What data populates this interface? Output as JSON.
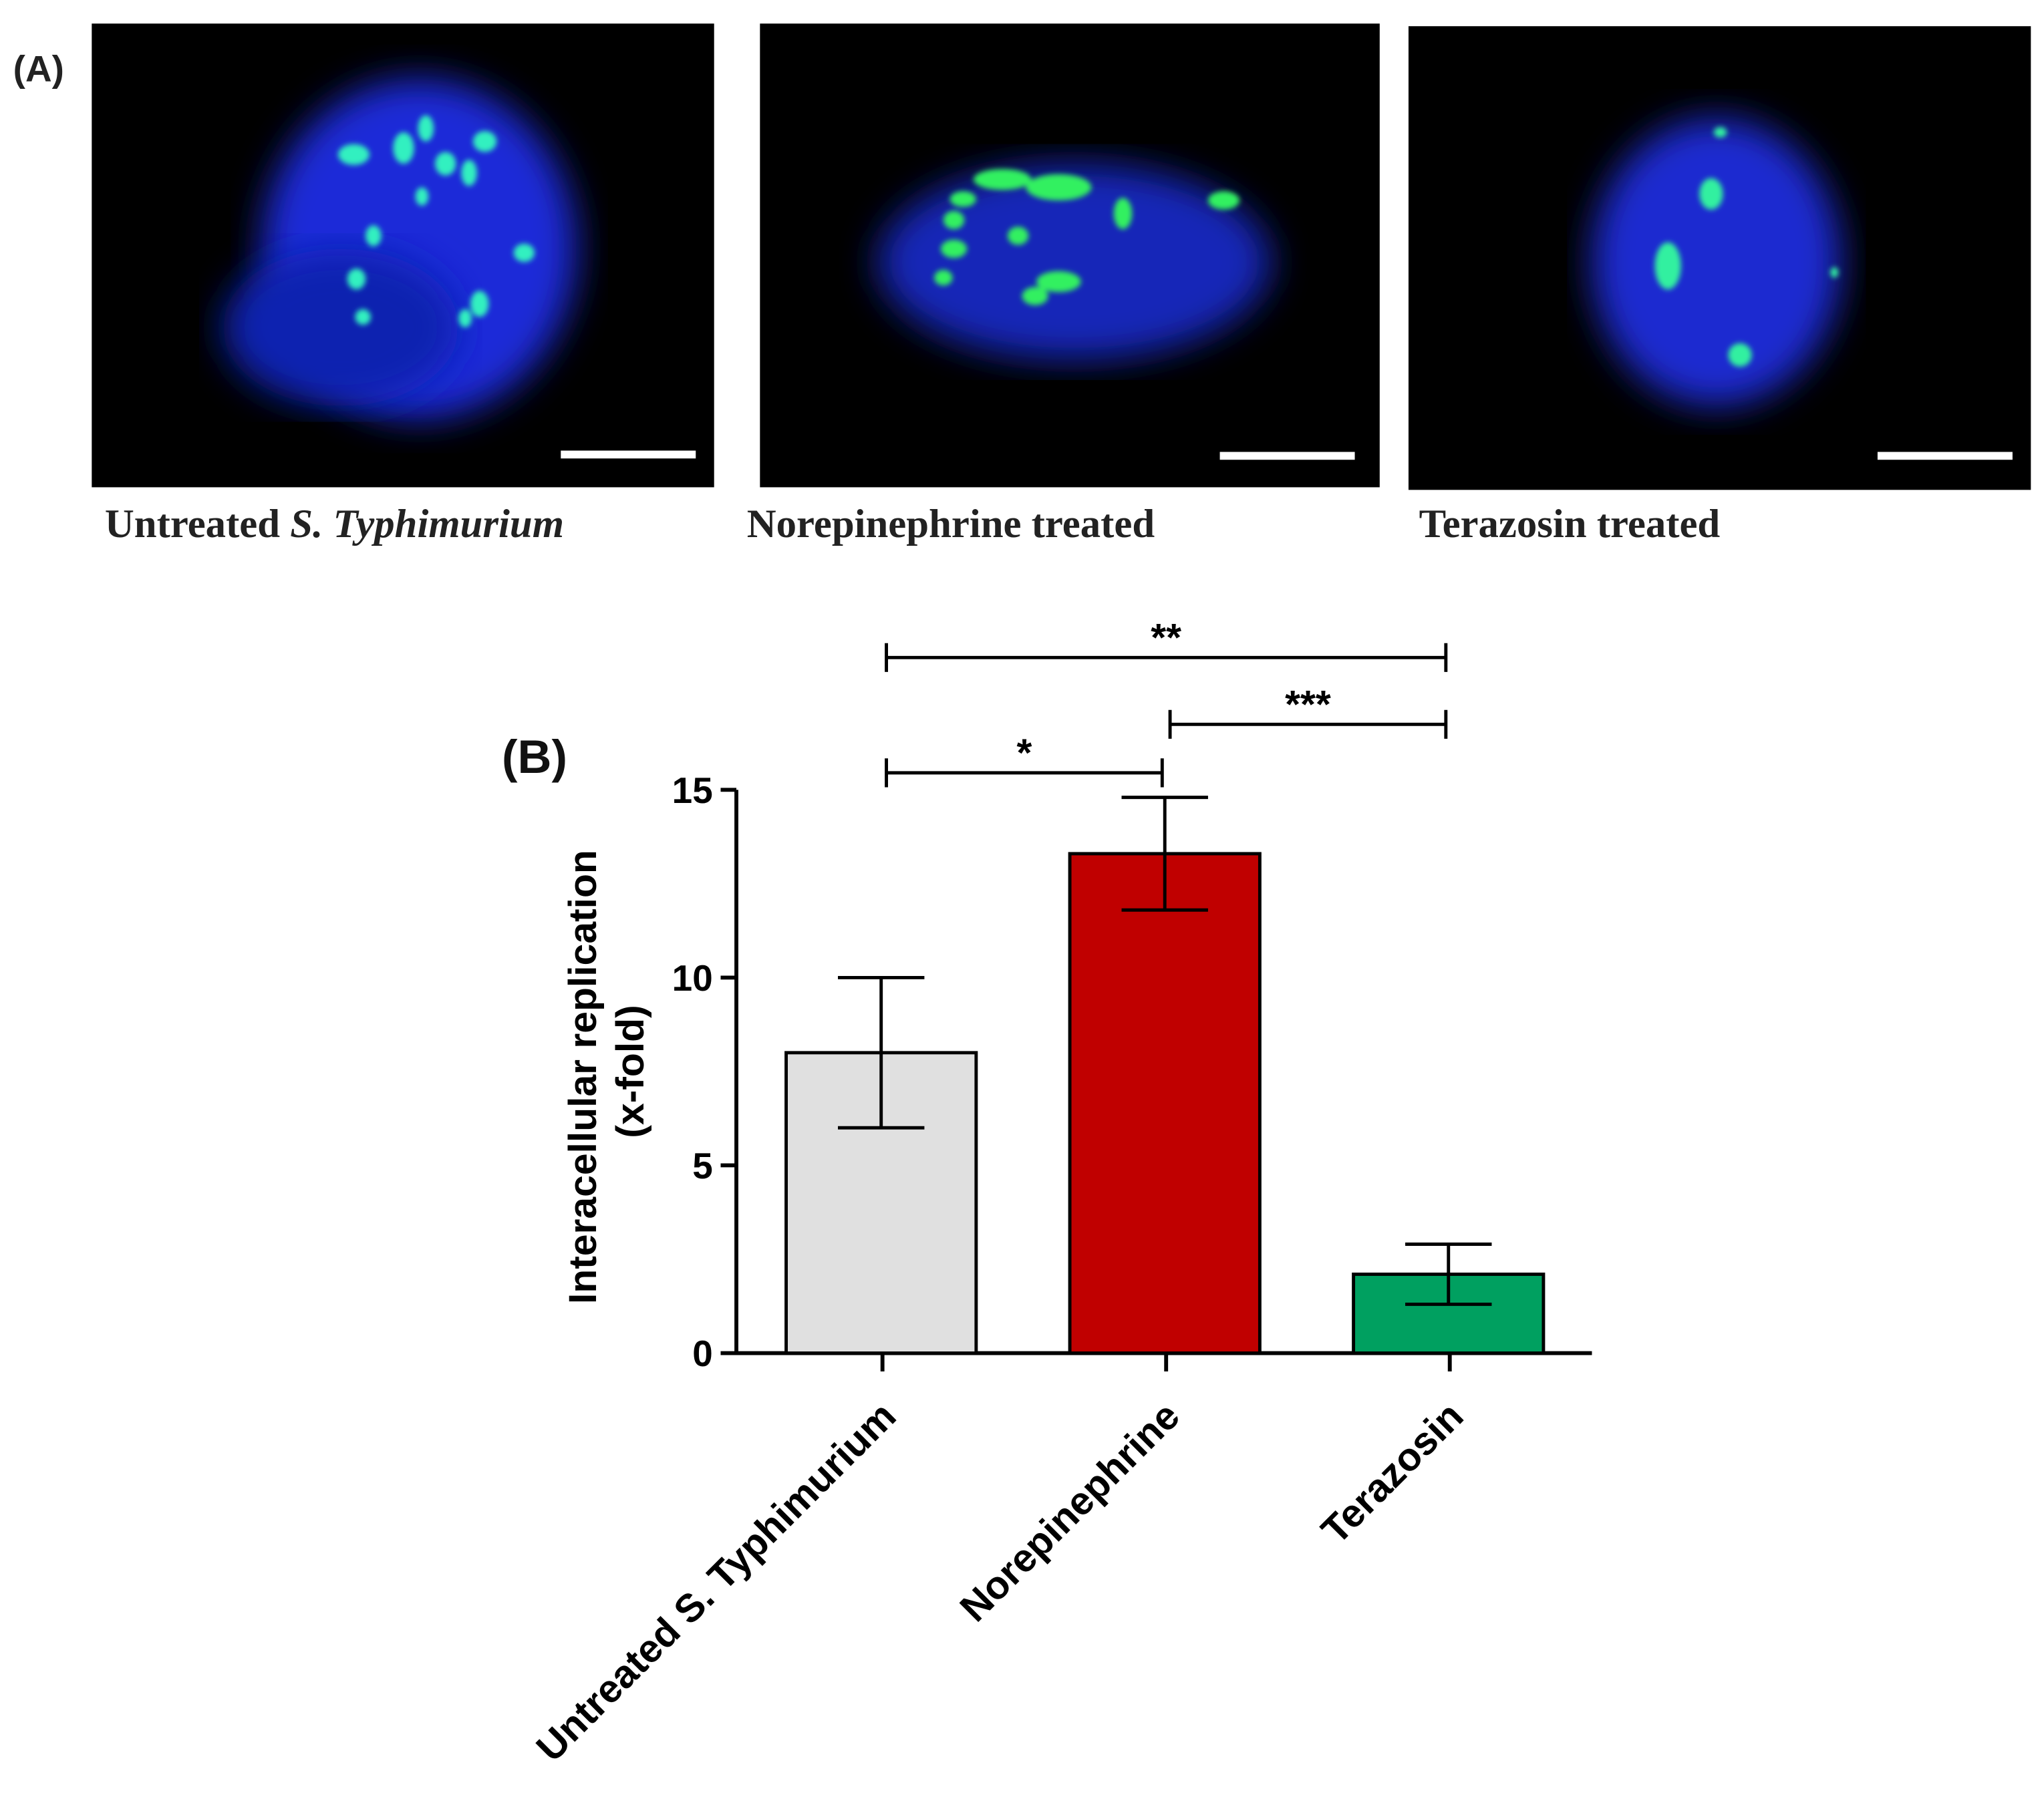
{
  "panel_a": {
    "label": "(A)",
    "captions": [
      {
        "text": "Untreated ",
        "italic": "S. Typhimurium"
      },
      {
        "text": "Norepinephrine treated"
      },
      {
        "text": "Terazosin treated"
      }
    ]
  },
  "chart_data": {
    "type": "bar",
    "panel_label": "(B)",
    "ylabel": [
      "Interacellular replication",
      "(x-fold)"
    ],
    "categories": [
      "Untreated S. Typhimurium",
      "Norepinephrine",
      "Terazosin"
    ],
    "values": [
      8.0,
      13.3,
      2.1
    ],
    "errors": [
      2.0,
      1.5,
      0.8
    ],
    "colors": [
      "#e0e0e0",
      "#c00000",
      "#00a060"
    ],
    "ylim": [
      0,
      15
    ],
    "yticks": [
      0,
      5,
      10,
      15
    ],
    "comparisons": [
      {
        "groups": [
          0,
          1
        ],
        "label": "*"
      },
      {
        "groups": [
          1,
          2
        ],
        "label": "***"
      },
      {
        "groups": [
          0,
          2
        ],
        "label": "**"
      }
    ]
  }
}
